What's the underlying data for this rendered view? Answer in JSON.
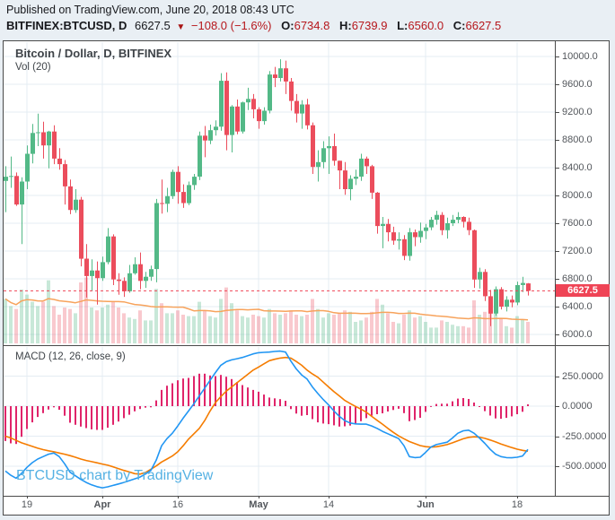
{
  "header": {
    "published_line": "Published on TradingView.com, June 20, 2018 08:43 UTC",
    "symbol": "BITFINEX:BTCUSD, D",
    "last_price": "6627.5",
    "direction_icon": "down-triangle",
    "change": "−108.0 (−1.6%)",
    "ohlc": [
      {
        "label": "O:",
        "value": "6734.8"
      },
      {
        "label": "H:",
        "value": "6739.9"
      },
      {
        "label": "L:",
        "value": "6560.0"
      },
      {
        "label": "C:",
        "value": "6627.5"
      }
    ]
  },
  "price_pane": {
    "legend_title": "Bitcoin / Dollar, D, BITFINEX",
    "legend_vol": "Vol (20)",
    "axis_labels": [
      "10000.0",
      "9600.0",
      "9200.0",
      "8800.0",
      "8400.0",
      "8000.0",
      "7600.0",
      "7200.0",
      "6800.0",
      "6400.0",
      "6000.0"
    ],
    "price_label": "6627.5"
  },
  "macd_pane": {
    "legend": "MACD (12, 26, close, 9)",
    "axis_labels": [
      "250.0000",
      "0.0000",
      "-250.0000",
      "-500.0000"
    ]
  },
  "time_axis": {
    "ticks": [
      {
        "index": 4,
        "label": "19",
        "bold": false
      },
      {
        "index": 18,
        "label": "Apr",
        "bold": true
      },
      {
        "index": 32,
        "label": "16",
        "bold": false
      },
      {
        "index": 47,
        "label": "May",
        "bold": true
      },
      {
        "index": 60,
        "label": "14",
        "bold": false
      },
      {
        "index": 78,
        "label": "Jun",
        "bold": true
      },
      {
        "index": 95,
        "label": "18",
        "bold": false
      }
    ]
  },
  "watermark": "BTCUSD chart by TradingView",
  "colors": {
    "bg": "#e9eff4",
    "pane_bg": "#ffffff",
    "border": "#4a4a4a",
    "grid": "#e4ecf3",
    "text": "#17181c",
    "axis_text": "#52565b",
    "header_red": "#b6171c",
    "up": "#53b987",
    "down": "#eb4d5c",
    "vol_up": "rgba(83,185,135,0.32)",
    "vol_down": "rgba(235,77,92,0.30)",
    "vol_ma": "#f7a35c",
    "macd_line": "#2196f3",
    "signal_line": "#f57c00",
    "hist": "#e0246a",
    "last_line": "#ef4456",
    "watermark": "#55b1e3"
  },
  "chart_data": {
    "type": "candlestick",
    "title": "Bitcoin / Dollar, D, BITFINEX",
    "symbol": "BTCUSD",
    "exchange": "BITFINEX",
    "interval": "D",
    "price_ylim": [
      5790,
      10200
    ],
    "macd_ylim": [
      -750,
      490
    ],
    "grid": true,
    "last_price": 6627.5,
    "price_grid_values": [
      10000,
      9600,
      9200,
      8800,
      8400,
      8000,
      7600,
      7200,
      6800,
      6400,
      6000
    ],
    "macd_grid_values": [
      250,
      0,
      -250,
      -500
    ],
    "candles_format": [
      "date",
      "open",
      "high",
      "low",
      "close",
      "volume_rel"
    ],
    "candles": [
      [
        "2018-03-15",
        8210,
        8420,
        7760,
        8270,
        62
      ],
      [
        "2018-03-16",
        8270,
        8560,
        8110,
        8280,
        52
      ],
      [
        "2018-03-17",
        8280,
        8330,
        7850,
        7870,
        48
      ],
      [
        "2018-03-18",
        7870,
        8260,
        7300,
        8200,
        75
      ],
      [
        "2018-03-19",
        8200,
        8720,
        8090,
        8600,
        68
      ],
      [
        "2018-03-20",
        8600,
        9030,
        8460,
        8900,
        58
      ],
      [
        "2018-03-21",
        8900,
        9177,
        8710,
        8910,
        52
      ],
      [
        "2018-03-22",
        8910,
        9060,
        8530,
        8720,
        58
      ],
      [
        "2018-03-23",
        8720,
        8930,
        8390,
        8920,
        88
      ],
      [
        "2018-03-24",
        8920,
        9010,
        8450,
        8530,
        52
      ],
      [
        "2018-03-25",
        8530,
        8680,
        8370,
        8450,
        40
      ],
      [
        "2018-03-26",
        8450,
        8510,
        7870,
        8130,
        50
      ],
      [
        "2018-03-27",
        8130,
        8230,
        7730,
        7790,
        48
      ],
      [
        "2018-03-28",
        7790,
        8090,
        7750,
        7940,
        42
      ],
      [
        "2018-03-29",
        7940,
        7980,
        6980,
        7090,
        85
      ],
      [
        "2018-03-30",
        7090,
        7300,
        6530,
        6840,
        92
      ],
      [
        "2018-03-31",
        6840,
        7080,
        6620,
        6920,
        50
      ],
      [
        "2018-04-01",
        6920,
        7050,
        6430,
        6810,
        46
      ],
      [
        "2018-04-02",
        6810,
        7120,
        6770,
        7040,
        50
      ],
      [
        "2018-04-03",
        7040,
        7530,
        7010,
        7410,
        54
      ],
      [
        "2018-04-04",
        7410,
        7440,
        6710,
        6790,
        58
      ],
      [
        "2018-04-05",
        6790,
        6880,
        6570,
        6770,
        50
      ],
      [
        "2018-04-06",
        6770,
        6820,
        6540,
        6620,
        42
      ],
      [
        "2018-04-07",
        6620,
        7000,
        6600,
        6880,
        36
      ],
      [
        "2018-04-08",
        6880,
        7110,
        6860,
        7010,
        34
      ],
      [
        "2018-04-09",
        7010,
        7180,
        6650,
        6770,
        46
      ],
      [
        "2018-04-10",
        6770,
        6900,
        6670,
        6830,
        32
      ],
      [
        "2018-04-11",
        6830,
        6990,
        6770,
        6940,
        32
      ],
      [
        "2018-04-12",
        6940,
        7950,
        6750,
        7890,
        76
      ],
      [
        "2018-04-13",
        7890,
        8230,
        7740,
        7880,
        56
      ],
      [
        "2018-04-14",
        7880,
        8110,
        7760,
        7990,
        42
      ],
      [
        "2018-04-15",
        7990,
        8370,
        7950,
        8340,
        42
      ],
      [
        "2018-04-16",
        8340,
        8420,
        7880,
        8050,
        46
      ],
      [
        "2018-04-17",
        8050,
        8160,
        7820,
        7890,
        40
      ],
      [
        "2018-04-18",
        7890,
        8200,
        7860,
        8150,
        38
      ],
      [
        "2018-04-19",
        8150,
        8310,
        8080,
        8270,
        38
      ],
      [
        "2018-04-20",
        8270,
        8920,
        8220,
        8860,
        58
      ],
      [
        "2018-04-21",
        8860,
        9000,
        8550,
        8790,
        46
      ],
      [
        "2018-04-22",
        8790,
        9020,
        8740,
        8940,
        38
      ],
      [
        "2018-04-23",
        8940,
        9080,
        8860,
        8990,
        36
      ],
      [
        "2018-04-24",
        8990,
        9760,
        8930,
        9650,
        62
      ],
      [
        "2018-04-25",
        9650,
        9770,
        8650,
        8870,
        78
      ],
      [
        "2018-04-26",
        8870,
        9300,
        8620,
        9280,
        56
      ],
      [
        "2018-04-27",
        9280,
        9380,
        8880,
        8920,
        46
      ],
      [
        "2018-04-28",
        8920,
        9350,
        8890,
        9340,
        38
      ],
      [
        "2018-04-29",
        9340,
        9550,
        9230,
        9390,
        36
      ],
      [
        "2018-04-30",
        9390,
        9460,
        9110,
        9240,
        40
      ],
      [
        "2018-05-01",
        9240,
        9270,
        8960,
        9070,
        38
      ],
      [
        "2018-05-02",
        9070,
        9270,
        9020,
        9220,
        36
      ],
      [
        "2018-05-03",
        9220,
        9790,
        9180,
        9740,
        48
      ],
      [
        "2018-05-04",
        9740,
        9850,
        9560,
        9690,
        42
      ],
      [
        "2018-05-05",
        9690,
        9960,
        9640,
        9830,
        40
      ],
      [
        "2018-05-06",
        9830,
        9940,
        9460,
        9640,
        42
      ],
      [
        "2018-05-07",
        9640,
        9690,
        9220,
        9360,
        46
      ],
      [
        "2018-05-08",
        9360,
        9460,
        9050,
        9180,
        40
      ],
      [
        "2018-05-09",
        9180,
        9370,
        8960,
        9310,
        38
      ],
      [
        "2018-05-10",
        9310,
        9390,
        8950,
        9010,
        40
      ],
      [
        "2018-05-11",
        9010,
        9050,
        8310,
        8410,
        62
      ],
      [
        "2018-05-12",
        8410,
        8650,
        8200,
        8480,
        48
      ],
      [
        "2018-05-13",
        8480,
        8780,
        8390,
        8680,
        36
      ],
      [
        "2018-05-14",
        8680,
        8850,
        8310,
        8710,
        42
      ],
      [
        "2018-05-15",
        8710,
        8890,
        8430,
        8500,
        40
      ],
      [
        "2018-05-16",
        8500,
        8500,
        8090,
        8360,
        42
      ],
      [
        "2018-05-17",
        8360,
        8480,
        8010,
        8090,
        46
      ],
      [
        "2018-05-18",
        8090,
        8290,
        7930,
        8240,
        44
      ],
      [
        "2018-05-19",
        8240,
        8370,
        8150,
        8270,
        30
      ],
      [
        "2018-05-20",
        8270,
        8600,
        8210,
        8530,
        32
      ],
      [
        "2018-05-21",
        8530,
        8560,
        8310,
        8420,
        36
      ],
      [
        "2018-05-22",
        8420,
        8440,
        7950,
        8040,
        44
      ],
      [
        "2018-05-23",
        8040,
        8050,
        7450,
        7560,
        62
      ],
      [
        "2018-05-24",
        7560,
        7690,
        7240,
        7590,
        54
      ],
      [
        "2018-05-25",
        7590,
        7660,
        7340,
        7470,
        42
      ],
      [
        "2018-05-26",
        7470,
        7550,
        7290,
        7350,
        30
      ],
      [
        "2018-05-27",
        7350,
        7470,
        7220,
        7370,
        28
      ],
      [
        "2018-05-28",
        7370,
        7430,
        7070,
        7130,
        40
      ],
      [
        "2018-05-29",
        7130,
        7530,
        7060,
        7470,
        46
      ],
      [
        "2018-05-30",
        7470,
        7510,
        7270,
        7400,
        36
      ],
      [
        "2018-05-31",
        7400,
        7610,
        7320,
        7490,
        38
      ],
      [
        "2018-06-01",
        7490,
        7590,
        7370,
        7540,
        30
      ],
      [
        "2018-06-02",
        7540,
        7690,
        7500,
        7650,
        22
      ],
      [
        "2018-06-03",
        7650,
        7780,
        7580,
        7720,
        22
      ],
      [
        "2018-06-04",
        7720,
        7760,
        7430,
        7500,
        32
      ],
      [
        "2018-06-05",
        7500,
        7680,
        7380,
        7600,
        30
      ],
      [
        "2018-06-06",
        7600,
        7720,
        7560,
        7650,
        26
      ],
      [
        "2018-06-07",
        7650,
        7760,
        7600,
        7690,
        24
      ],
      [
        "2018-06-08",
        7690,
        7700,
        7540,
        7620,
        24
      ],
      [
        "2018-06-09",
        7620,
        7680,
        7430,
        7500,
        22
      ],
      [
        "2018-06-10",
        7500,
        7510,
        6670,
        6790,
        60
      ],
      [
        "2018-06-11",
        6790,
        6960,
        6660,
        6900,
        40
      ],
      [
        "2018-06-12",
        6900,
        6940,
        6480,
        6550,
        44
      ],
      [
        "2018-06-13",
        6550,
        6640,
        6120,
        6300,
        55
      ],
      [
        "2018-06-14",
        6300,
        6690,
        6270,
        6650,
        44
      ],
      [
        "2018-06-15",
        6650,
        6680,
        6360,
        6400,
        35
      ],
      [
        "2018-06-16",
        6400,
        6550,
        6330,
        6500,
        24
      ],
      [
        "2018-06-17",
        6500,
        6560,
        6390,
        6460,
        22
      ],
      [
        "2018-06-18",
        6460,
        6760,
        6420,
        6710,
        38
      ],
      [
        "2018-06-19",
        6710,
        6830,
        6610,
        6740,
        33
      ],
      [
        "2018-06-20",
        6734.8,
        6739.9,
        6560.0,
        6627.5,
        30
      ]
    ],
    "macd": [
      -540,
      -575,
      -600,
      -560,
      -510,
      -470,
      -440,
      -420,
      -400,
      -390,
      -420,
      -480,
      -550,
      -580,
      -610,
      -635,
      -655,
      -670,
      -680,
      -672,
      -660,
      -648,
      -635,
      -620,
      -605,
      -590,
      -565,
      -535,
      -450,
      -330,
      -270,
      -225,
      -165,
      -100,
      -40,
      20,
      85,
      150,
      215,
      280,
      340,
      370,
      385,
      395,
      405,
      420,
      435,
      445,
      448,
      450,
      455,
      458,
      450,
      375,
      310,
      260,
      225,
      160,
      105,
      55,
      10,
      -40,
      -85,
      -120,
      -140,
      -148,
      -150,
      -150,
      -165,
      -185,
      -210,
      -230,
      -250,
      -270,
      -330,
      -420,
      -428,
      -425,
      -385,
      -340,
      -320,
      -310,
      -300,
      -265,
      -225,
      -205,
      -200,
      -225,
      -265,
      -310,
      -360,
      -400,
      -420,
      -428,
      -430,
      -425,
      -415,
      -360
    ],
    "macd_signal": [
      -250,
      -265,
      -285,
      -305,
      -320,
      -335,
      -350,
      -362,
      -372,
      -380,
      -390,
      -400,
      -412,
      -425,
      -440,
      -452,
      -462,
      -472,
      -482,
      -492,
      -505,
      -520,
      -535,
      -548,
      -562,
      -566,
      -552,
      -525,
      -498,
      -465,
      -440,
      -415,
      -380,
      -330,
      -275,
      -230,
      -185,
      -120,
      -40,
      30,
      80,
      125,
      160,
      195,
      230,
      265,
      300,
      325,
      352,
      378,
      390,
      400,
      405,
      400,
      372,
      340,
      300,
      268,
      240,
      200,
      160,
      120,
      85,
      48,
      22,
      -2,
      -25,
      -50,
      -85,
      -118,
      -150,
      -185,
      -218,
      -248,
      -272,
      -295,
      -312,
      -328,
      -337,
      -341,
      -338,
      -330,
      -320,
      -305,
      -288,
      -272,
      -260,
      -255,
      -258,
      -268,
      -282,
      -298,
      -315,
      -330,
      -345,
      -358,
      -368,
      -375
    ]
  }
}
